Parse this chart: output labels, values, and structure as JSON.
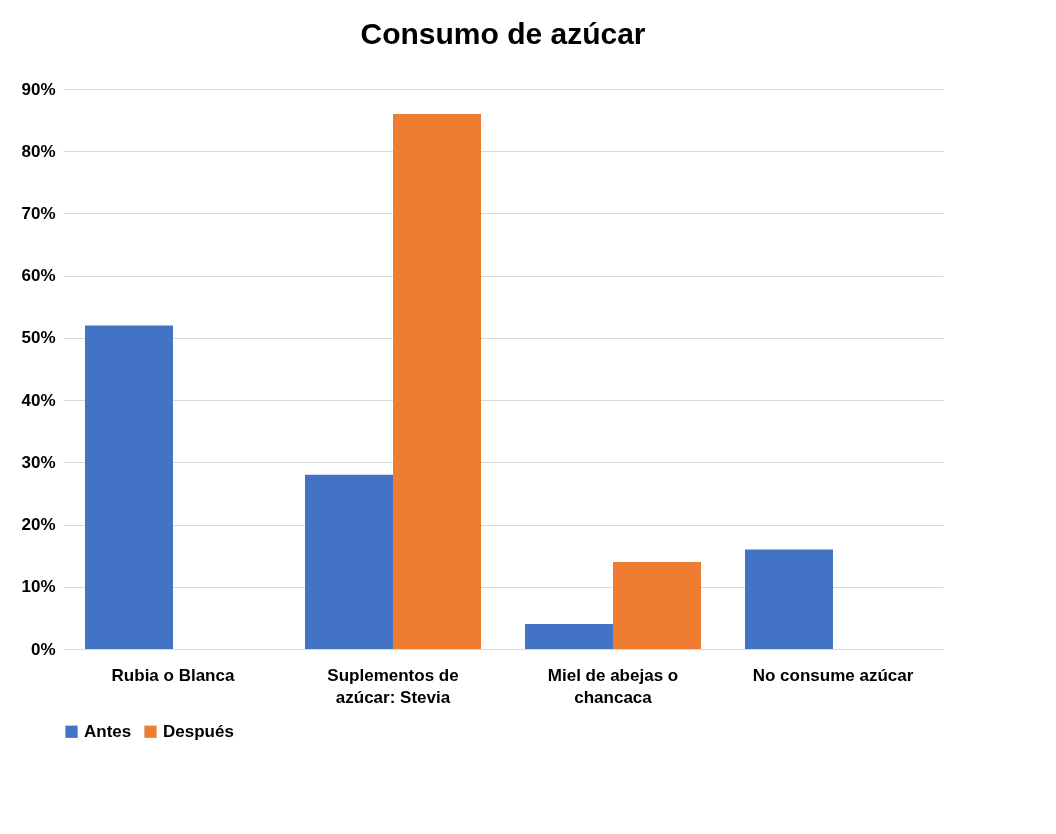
{
  "chart_data": {
    "type": "bar",
    "title": "Consumo de azúcar",
    "categories": [
      "Rubia o Blanca",
      "Suplementos de azúcar: Stevia",
      "Miel de abejas o chancaca",
      "No consume azúcar"
    ],
    "series": [
      {
        "name": "Antes",
        "color": "#4472c4",
        "values": [
          52,
          28,
          4,
          16
        ]
      },
      {
        "name": "Después",
        "color": "#ed7d31",
        "values": [
          0,
          86,
          14,
          0
        ]
      }
    ],
    "ylim": [
      0,
      90
    ],
    "yticks": [
      {
        "value": 0,
        "label": "0%"
      },
      {
        "value": 10,
        "label": "10%"
      },
      {
        "value": 20,
        "label": "20%"
      },
      {
        "value": 30,
        "label": "30%"
      },
      {
        "value": 40,
        "label": "40%"
      },
      {
        "value": 50,
        "label": "50%"
      },
      {
        "value": 60,
        "label": "60%"
      },
      {
        "value": 70,
        "label": "70%"
      },
      {
        "value": 80,
        "label": "80%"
      },
      {
        "value": 90,
        "label": "90%"
      }
    ],
    "grid": "y",
    "legend": "bottom"
  }
}
